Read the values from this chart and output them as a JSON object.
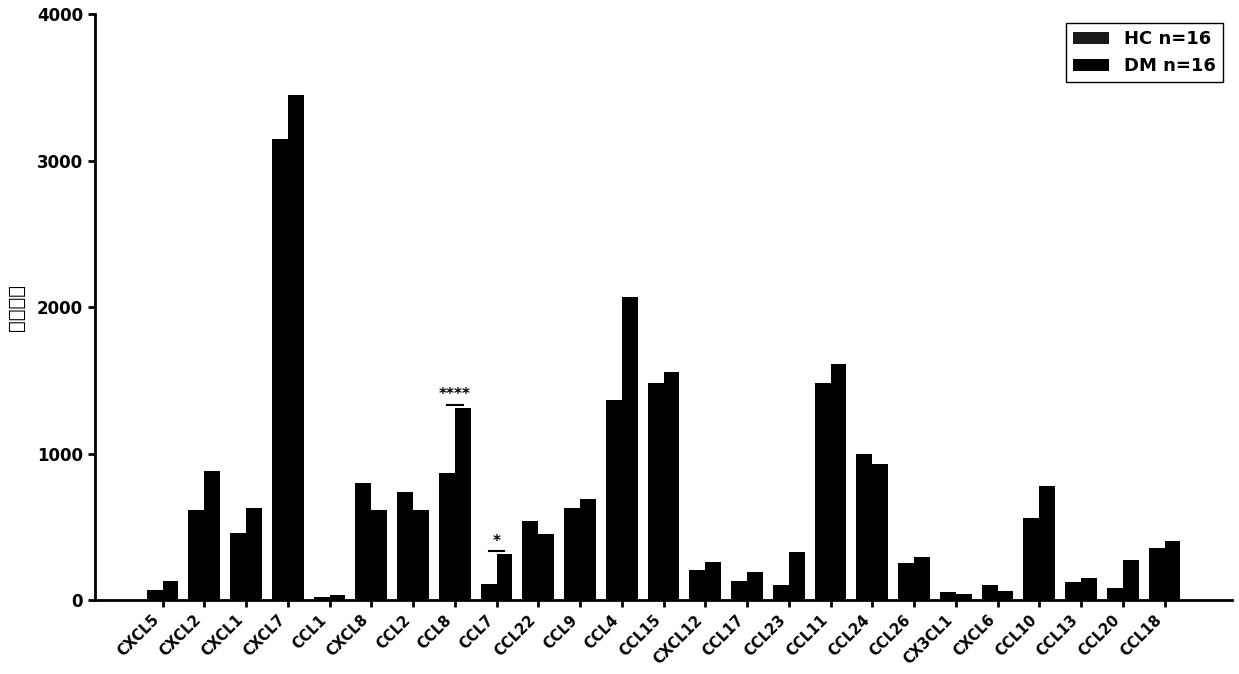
{
  "categories": [
    "CXCL5",
    "CXCL2",
    "CXCL1",
    "CXCL7",
    "CCL1",
    "CXCL8",
    "CCL2",
    "CCL8",
    "CCL7",
    "CCL22",
    "CCL9",
    "CCL4",
    "CCL15",
    "CXCL12",
    "CCL17",
    "CCL23",
    "CCL11",
    "CCL24",
    "CCL26",
    "CX3CL1",
    "CXCL6",
    "CCL10",
    "CCL13",
    "CCL20",
    "CCL18"
  ],
  "HC": [
    70,
    620,
    460,
    3150,
    25,
    800,
    740,
    870,
    110,
    540,
    630,
    1370,
    1480,
    205,
    135,
    105,
    1480,
    1000,
    255,
    55,
    105,
    560,
    125,
    85,
    355
  ],
  "DM": [
    130,
    880,
    630,
    3450,
    35,
    620,
    620,
    1310,
    320,
    450,
    690,
    2070,
    1560,
    265,
    195,
    330,
    1610,
    930,
    295,
    45,
    65,
    780,
    155,
    275,
    405
  ],
  "HC_color": "#000000",
  "DM_color": "#000000",
  "bar_width": 0.38,
  "ylim": [
    0,
    4000
  ],
  "yticks": [
    0,
    1000,
    2000,
    3000,
    4000
  ],
  "ylabel": "荧光强度",
  "legend_HC": "HC n=16",
  "legend_DM": "DM n=16",
  "ccl8_idx": 7,
  "ccl7_idx": 8,
  "annotation_ccl8": "****",
  "annotation_ccl7": "*",
  "background_color": "#ffffff"
}
